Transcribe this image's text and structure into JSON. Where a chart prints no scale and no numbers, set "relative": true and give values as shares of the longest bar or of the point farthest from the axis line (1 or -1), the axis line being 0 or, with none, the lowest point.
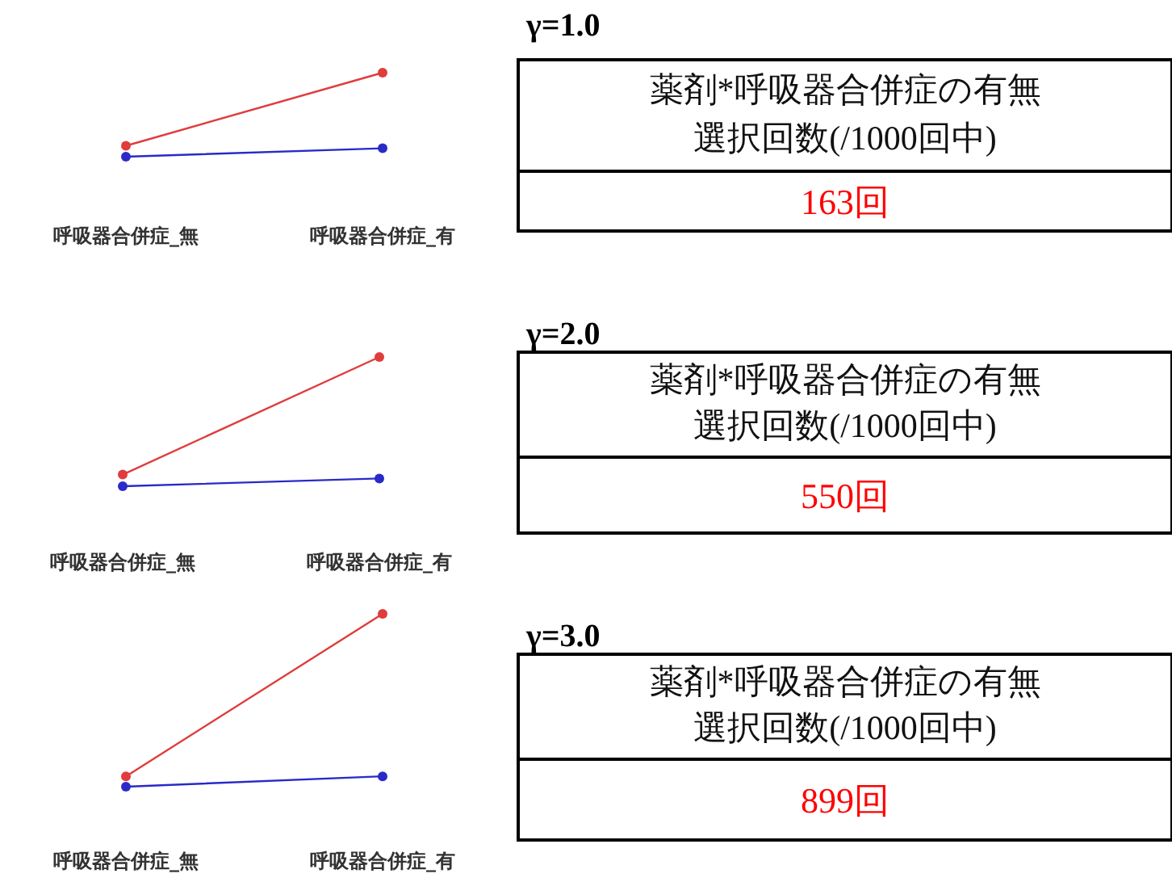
{
  "chart_data": [
    {
      "type": "line",
      "relative": true,
      "categories": [
        "呼吸器合併症_無",
        "呼吸器合併症_有"
      ],
      "marker": "circle",
      "line_style": "solid",
      "series": [
        {
          "color": "#e03c3c",
          "values": [
            0.13,
            1
          ]
        },
        {
          "color": "#2a2ac8",
          "values": [
            0,
            0.1
          ]
        }
      ]
    },
    {
      "type": "other",
      "title": "γ=1.0",
      "annotations": [
        "薬剤*呼吸器合併症の有無",
        "選択回数(/1000回中)",
        "163回"
      ]
    },
    {
      "type": "line",
      "relative": true,
      "categories": [
        "呼吸器合併症_無",
        "呼吸器合併症_有"
      ],
      "marker": "circle",
      "line_style": "solid",
      "series": [
        {
          "color": "#e03c3c",
          "values": [
            0.09,
            1
          ]
        },
        {
          "color": "#2a2ac8",
          "values": [
            0,
            0.06
          ]
        }
      ]
    },
    {
      "type": "other",
      "title": "γ=2.0",
      "annotations": [
        "薬剤*呼吸器合併症の有無",
        "選択回数(/1000回中)",
        "550回"
      ]
    },
    {
      "type": "line",
      "relative": true,
      "categories": [
        "呼吸器合併症_無",
        "呼吸器合併症_有"
      ],
      "marker": "circle",
      "line_style": "solid",
      "series": [
        {
          "color": "#e03c3c",
          "values": [
            0.06,
            1
          ]
        },
        {
          "color": "#2a2ac8",
          "values": [
            0,
            0.06
          ]
        }
      ]
    },
    {
      "type": "other",
      "title": "γ=3.0",
      "annotations": [
        "薬剤*呼吸器合併症の有無",
        "選択回数(/1000回中)",
        "899回"
      ]
    }
  ]
}
